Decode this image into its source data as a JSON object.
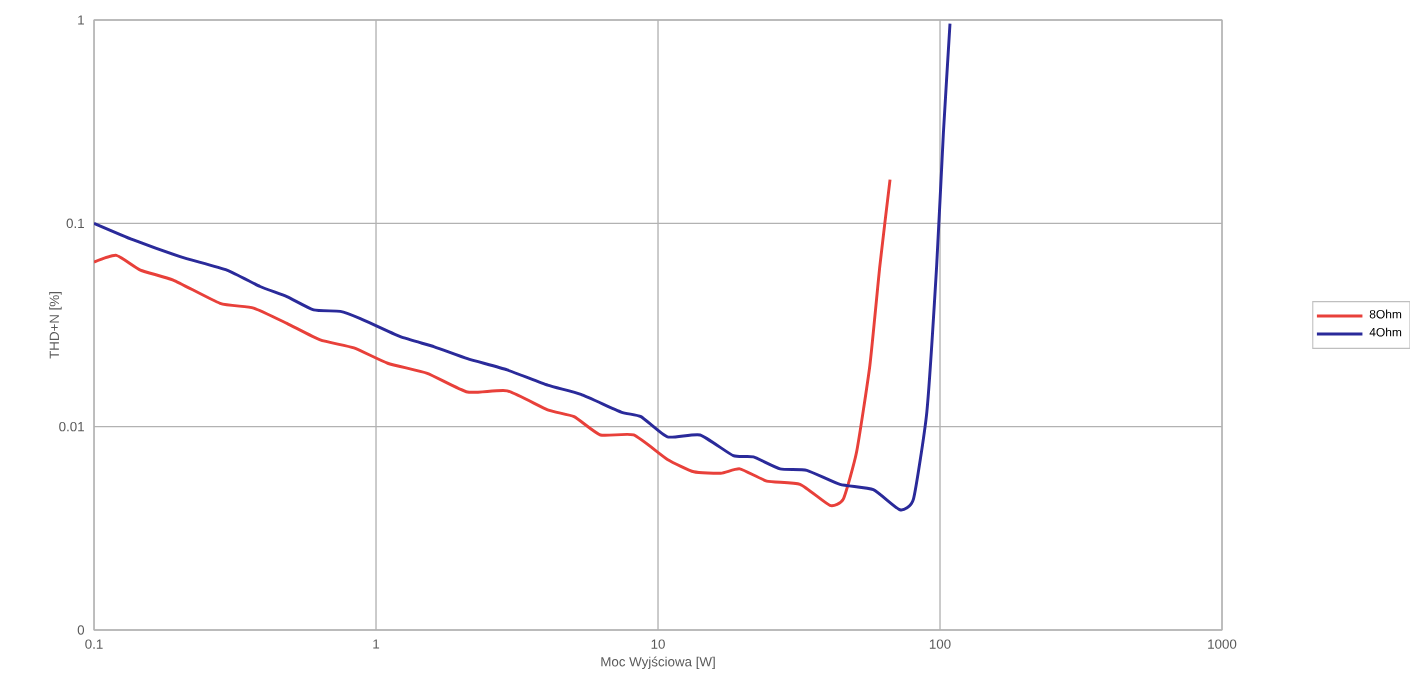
{
  "chart_data": {
    "type": "line",
    "xlabel": "Moc Wyjściowa [W]",
    "ylabel": "THD+N [%]",
    "log": "xy",
    "grid": true,
    "legend": "right",
    "line_style": "solid",
    "marker": "none",
    "xlim": [
      0.1,
      1000
    ],
    "ylim": [
      0.001,
      1
    ],
    "xticks": [
      0.1,
      1,
      10,
      100,
      1000
    ],
    "yticks": [
      {
        "value": 0.001,
        "label": "0"
      },
      0.01,
      0.1,
      1
    ],
    "series": [
      {
        "name": "8Ohm",
        "color": "#e8403a",
        "x": [
          0.1,
          0.12,
          0.146,
          0.191,
          0.28,
          0.368,
          0.483,
          0.634,
          0.835,
          1.1,
          1.52,
          2.11,
          2.92,
          4.06,
          5.04,
          6.25,
          8.2,
          10.8,
          13.4,
          16.7,
          19.5,
          24.3,
          31.9,
          40.7,
          45.4,
          50.6,
          56.4,
          61.2,
          66.5
        ],
        "values": [
          0.0645,
          0.0696,
          0.0589,
          0.0526,
          0.0404,
          0.0383,
          0.0322,
          0.0267,
          0.0244,
          0.0205,
          0.0183,
          0.0148,
          0.015,
          0.0121,
          0.0112,
          0.0091,
          0.0091,
          0.0069,
          0.006,
          0.0059,
          0.0062,
          0.0054,
          0.0052,
          0.0041,
          0.0044,
          0.0075,
          0.02,
          0.0618,
          0.164
        ]
      },
      {
        "name": "4Ohm",
        "color": "#2a2a9a",
        "x": [
          0.1,
          0.138,
          0.202,
          0.296,
          0.388,
          0.483,
          0.601,
          0.747,
          0.88,
          1.22,
          1.61,
          2.11,
          2.92,
          4.06,
          5.33,
          7.4,
          8.7,
          10.8,
          14.1,
          18.5,
          21.8,
          27.1,
          33.7,
          44.2,
          58,
          72.1,
          80.5,
          89.8,
          97.3,
          102.8,
          108.5
        ],
        "values": [
          0.1,
          0.0828,
          0.0686,
          0.0589,
          0.0489,
          0.0436,
          0.0375,
          0.0369,
          0.034,
          0.0277,
          0.0247,
          0.0216,
          0.019,
          0.016,
          0.0144,
          0.0118,
          0.0112,
          0.0089,
          0.0091,
          0.0072,
          0.0071,
          0.0062,
          0.0061,
          0.0052,
          0.0049,
          0.0039,
          0.0044,
          0.0118,
          0.0618,
          0.278,
          0.96
        ]
      }
    ]
  }
}
